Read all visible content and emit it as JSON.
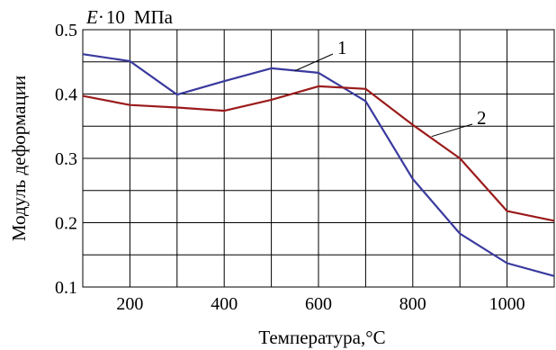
{
  "chart_data": {
    "type": "line",
    "title": "",
    "unit_label": {
      "symbol": "E",
      "sep": "·",
      "mult": "10",
      "unit": "МПа"
    },
    "ylabel": "Модуль деформации",
    "xlabel": "Температура,°C",
    "xlim": [
      100,
      1100
    ],
    "ylim": [
      0.1,
      0.5
    ],
    "x_ticks": [
      200,
      400,
      600,
      800,
      1000
    ],
    "y_ticks": [
      0.1,
      0.2,
      0.3,
      0.4,
      0.5
    ],
    "grid": true,
    "series": [
      {
        "name": "1",
        "color": "#3a3a9e",
        "points": [
          [
            100,
            0.462
          ],
          [
            200,
            0.451
          ],
          [
            300,
            0.399
          ],
          [
            400,
            0.42
          ],
          [
            500,
            0.44
          ],
          [
            600,
            0.433
          ],
          [
            700,
            0.389
          ],
          [
            800,
            0.268
          ],
          [
            900,
            0.183
          ],
          [
            1000,
            0.137
          ],
          [
            1100,
            0.117
          ]
        ]
      },
      {
        "name": "2",
        "color": "#9b1b1b",
        "points": [
          [
            100,
            0.397
          ],
          [
            200,
            0.383
          ],
          [
            300,
            0.379
          ],
          [
            400,
            0.374
          ],
          [
            500,
            0.391
          ],
          [
            600,
            0.412
          ],
          [
            700,
            0.408
          ],
          [
            800,
            0.352
          ],
          [
            900,
            0.3
          ],
          [
            1000,
            0.218
          ],
          [
            1100,
            0.203
          ]
        ]
      }
    ]
  }
}
